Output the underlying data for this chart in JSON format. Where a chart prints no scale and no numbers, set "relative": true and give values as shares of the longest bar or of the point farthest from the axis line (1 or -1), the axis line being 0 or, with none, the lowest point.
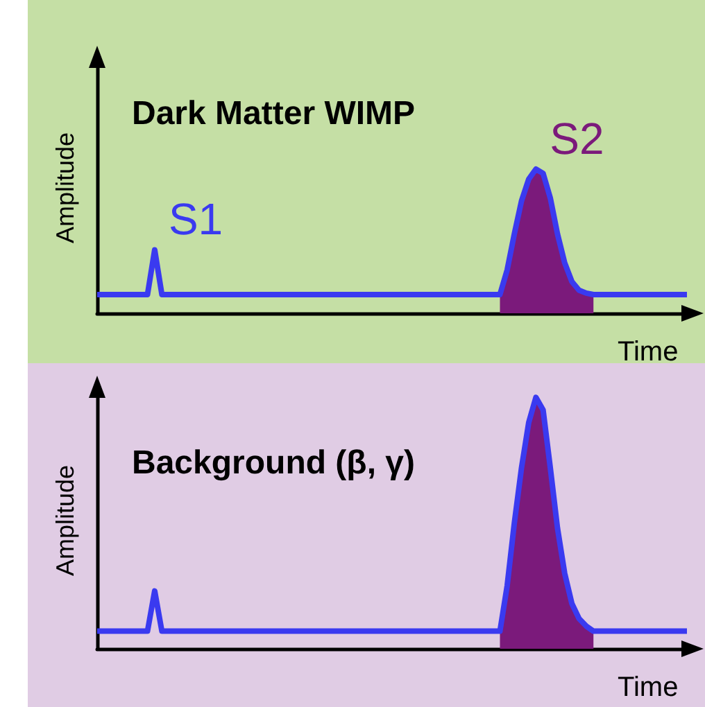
{
  "chart_data": [
    {
      "type": "line",
      "relative": true,
      "title": "Dark Matter WIMP",
      "xlabel": "Time",
      "ylabel": "Amplitude",
      "annotations": [
        "S1",
        "S2"
      ],
      "line_style": "solid",
      "categories": [
        null,
        null,
        null,
        null,
        null,
        null,
        null,
        null,
        null,
        null,
        null,
        null,
        null,
        null,
        null,
        null,
        null,
        null,
        null,
        null,
        null,
        null,
        null,
        null,
        null,
        null,
        null,
        null,
        null,
        null,
        null,
        null,
        null,
        null,
        null,
        null,
        null,
        null,
        null,
        null,
        null,
        null,
        null,
        null,
        null,
        null,
        null,
        null,
        null,
        null,
        null,
        null,
        null,
        null,
        null,
        null,
        null,
        null,
        null,
        null,
        null,
        null,
        null,
        null,
        null,
        null,
        null,
        null,
        null,
        null,
        null,
        null,
        null,
        null,
        null,
        null,
        null,
        null,
        null,
        null,
        null,
        null,
        null
      ],
      "series": [
        {
          "type": "area",
          "color": "#7b1a7b",
          "values": [
            null,
            null,
            null,
            null,
            null,
            null,
            null,
            null,
            null,
            null,
            null,
            null,
            null,
            null,
            null,
            null,
            null,
            null,
            null,
            null,
            null,
            null,
            null,
            null,
            null,
            null,
            null,
            null,
            null,
            null,
            null,
            null,
            null,
            null,
            null,
            null,
            null,
            null,
            null,
            null,
            null,
            null,
            null,
            null,
            null,
            null,
            null,
            null,
            null,
            null,
            null,
            null,
            null,
            null,
            null,
            null,
            0.13,
            0.3,
            0.55,
            0.78,
            0.93,
            1.0,
            0.97,
            0.8,
            0.55,
            0.35,
            0.22,
            0.16,
            0.14,
            0.13,
            null,
            null,
            null,
            null,
            null,
            null,
            null,
            null,
            null,
            null,
            null,
            null,
            null
          ]
        },
        {
          "color": "#3a3af0",
          "values": [
            0.13,
            0.13,
            0.13,
            0.13,
            0.13,
            0.13,
            0.13,
            0.13,
            0.44,
            0.13,
            0.13,
            0.13,
            0.13,
            0.13,
            0.13,
            0.13,
            0.13,
            0.13,
            0.13,
            0.13,
            0.13,
            0.13,
            0.13,
            0.13,
            0.13,
            0.13,
            0.13,
            0.13,
            0.13,
            0.13,
            0.13,
            0.13,
            0.13,
            0.13,
            0.13,
            0.13,
            0.13,
            0.13,
            0.13,
            0.13,
            0.13,
            0.13,
            0.13,
            0.13,
            0.13,
            0.13,
            0.13,
            0.13,
            0.13,
            0.13,
            0.13,
            0.13,
            0.13,
            0.13,
            0.13,
            0.13,
            0.13,
            0.3,
            0.55,
            0.78,
            0.93,
            1.0,
            0.97,
            0.8,
            0.55,
            0.35,
            0.22,
            0.16,
            0.14,
            0.13,
            0.13,
            0.13,
            0.13,
            0.13,
            0.13,
            0.13,
            0.13,
            0.13,
            0.13,
            0.13,
            0.13,
            0.13,
            0.13
          ]
        }
      ]
    },
    {
      "type": "line",
      "relative": true,
      "title": "Background (β, γ)",
      "xlabel": "Time",
      "ylabel": "Amplitude",
      "line_style": "solid",
      "categories": [
        null,
        null,
        null,
        null,
        null,
        null,
        null,
        null,
        null,
        null,
        null,
        null,
        null,
        null,
        null,
        null,
        null,
        null,
        null,
        null,
        null,
        null,
        null,
        null,
        null,
        null,
        null,
        null,
        null,
        null,
        null,
        null,
        null,
        null,
        null,
        null,
        null,
        null,
        null,
        null,
        null,
        null,
        null,
        null,
        null,
        null,
        null,
        null,
        null,
        null,
        null,
        null,
        null,
        null,
        null,
        null,
        null,
        null,
        null,
        null,
        null,
        null,
        null,
        null,
        null,
        null,
        null,
        null,
        null,
        null,
        null,
        null,
        null,
        null,
        null,
        null,
        null,
        null,
        null,
        null,
        null,
        null,
        null
      ],
      "series": [
        {
          "type": "area",
          "color": "#7b1a7b",
          "values": [
            null,
            null,
            null,
            null,
            null,
            null,
            null,
            null,
            null,
            null,
            null,
            null,
            null,
            null,
            null,
            null,
            null,
            null,
            null,
            null,
            null,
            null,
            null,
            null,
            null,
            null,
            null,
            null,
            null,
            null,
            null,
            null,
            null,
            null,
            null,
            null,
            null,
            null,
            null,
            null,
            null,
            null,
            null,
            null,
            null,
            null,
            null,
            null,
            null,
            null,
            null,
            null,
            null,
            null,
            null,
            null,
            0.07,
            0.25,
            0.5,
            0.72,
            0.9,
            1.0,
            0.95,
            0.72,
            0.48,
            0.3,
            0.18,
            0.12,
            0.09,
            0.07,
            null,
            null,
            null,
            null,
            null,
            null,
            null,
            null,
            null,
            null,
            null,
            null,
            null
          ]
        },
        {
          "color": "#3a3af0",
          "values": [
            0.07,
            0.07,
            0.07,
            0.07,
            0.07,
            0.07,
            0.07,
            0.07,
            0.23,
            0.07,
            0.07,
            0.07,
            0.07,
            0.07,
            0.07,
            0.07,
            0.07,
            0.07,
            0.07,
            0.07,
            0.07,
            0.07,
            0.07,
            0.07,
            0.07,
            0.07,
            0.07,
            0.07,
            0.07,
            0.07,
            0.07,
            0.07,
            0.07,
            0.07,
            0.07,
            0.07,
            0.07,
            0.07,
            0.07,
            0.07,
            0.07,
            0.07,
            0.07,
            0.07,
            0.07,
            0.07,
            0.07,
            0.07,
            0.07,
            0.07,
            0.07,
            0.07,
            0.07,
            0.07,
            0.07,
            0.07,
            0.07,
            0.25,
            0.5,
            0.72,
            0.9,
            1.0,
            0.95,
            0.72,
            0.48,
            0.3,
            0.18,
            0.12,
            0.09,
            0.07,
            0.07,
            0.07,
            0.07,
            0.07,
            0.07,
            0.07,
            0.07,
            0.07,
            0.07,
            0.07,
            0.07,
            0.07,
            0.07
          ]
        }
      ]
    }
  ]
}
